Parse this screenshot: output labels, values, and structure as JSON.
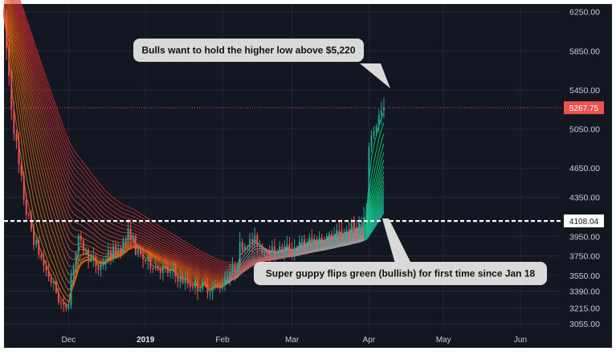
{
  "chart_data": {
    "type": "candlestick",
    "ylim": [
      2990,
      6330
    ],
    "x_ticks": [
      {
        "label": "Dec",
        "day": 26,
        "bold": false
      },
      {
        "label": "2019",
        "day": 57,
        "bold": true
      },
      {
        "label": "Feb",
        "day": 88,
        "bold": false
      },
      {
        "label": "Mar",
        "day": 116,
        "bold": false
      },
      {
        "label": "Apr",
        "day": 147,
        "bold": false
      },
      {
        "label": "May",
        "day": 177,
        "bold": false
      },
      {
        "label": "Jun",
        "day": 208,
        "bold": false
      }
    ],
    "y_ticks": [
      6250.0,
      5850.0,
      5450.0,
      5050.0,
      4650.0,
      4350.0,
      3950.0,
      3750.0,
      3550.0,
      3390.0,
      3215.0,
      3055.0
    ],
    "price_path": [
      [
        0,
        6150
      ],
      [
        3,
        5300
      ],
      [
        6,
        4650
      ],
      [
        9,
        4200
      ],
      [
        13,
        3850
      ],
      [
        17,
        3600
      ],
      [
        21,
        3380
      ],
      [
        24,
        3200
      ],
      [
        26,
        3280
      ],
      [
        27,
        3550
      ],
      [
        30,
        3900
      ],
      [
        34,
        3750
      ],
      [
        38,
        3620
      ],
      [
        42,
        3750
      ],
      [
        46,
        3820
      ],
      [
        51,
        4000
      ],
      [
        53,
        3800
      ],
      [
        58,
        3680
      ],
      [
        63,
        3620
      ],
      [
        68,
        3560
      ],
      [
        73,
        3480
      ],
      [
        78,
        3440
      ],
      [
        84,
        3420
      ],
      [
        87,
        3440
      ],
      [
        90,
        3580
      ],
      [
        93,
        3620
      ],
      [
        95,
        3830
      ],
      [
        98,
        3880
      ],
      [
        102,
        3900
      ],
      [
        104,
        3830
      ],
      [
        108,
        3800
      ],
      [
        113,
        3820
      ],
      [
        118,
        3850
      ],
      [
        123,
        3900
      ],
      [
        128,
        3930
      ],
      [
        133,
        3960
      ],
      [
        138,
        4010
      ],
      [
        143,
        4060
      ],
      [
        146,
        4150
      ],
      [
        147,
        4900
      ],
      [
        149,
        5050
      ],
      [
        151,
        5170
      ],
      [
        153,
        5267.75
      ]
    ],
    "current_price": {
      "value": 5267.75,
      "label": "5267.75"
    },
    "level_line": {
      "value": 4108.04,
      "label": "4108.04"
    },
    "annotations": [
      {
        "name": "higher-low-callout",
        "text": "Bulls want to hold the higher low above $5,220"
      },
      {
        "name": "guppy-callout",
        "text": "Super guppy flips green (bullish) for first time since Jan 18"
      }
    ]
  },
  "colors": {
    "background": "#131722",
    "grid": "#232837",
    "candle_up": "#26a69a",
    "candle_down": "#ef5350",
    "ribbon_bear": "#d32f2f",
    "ribbon_mid": "#f57c00",
    "ribbon_flat": "#9e9e9e",
    "ribbon_bull": "#00e676",
    "price_badge": "#ef5350",
    "level_badge": "#ffffff",
    "callout_bg": "#d9d9d9"
  }
}
